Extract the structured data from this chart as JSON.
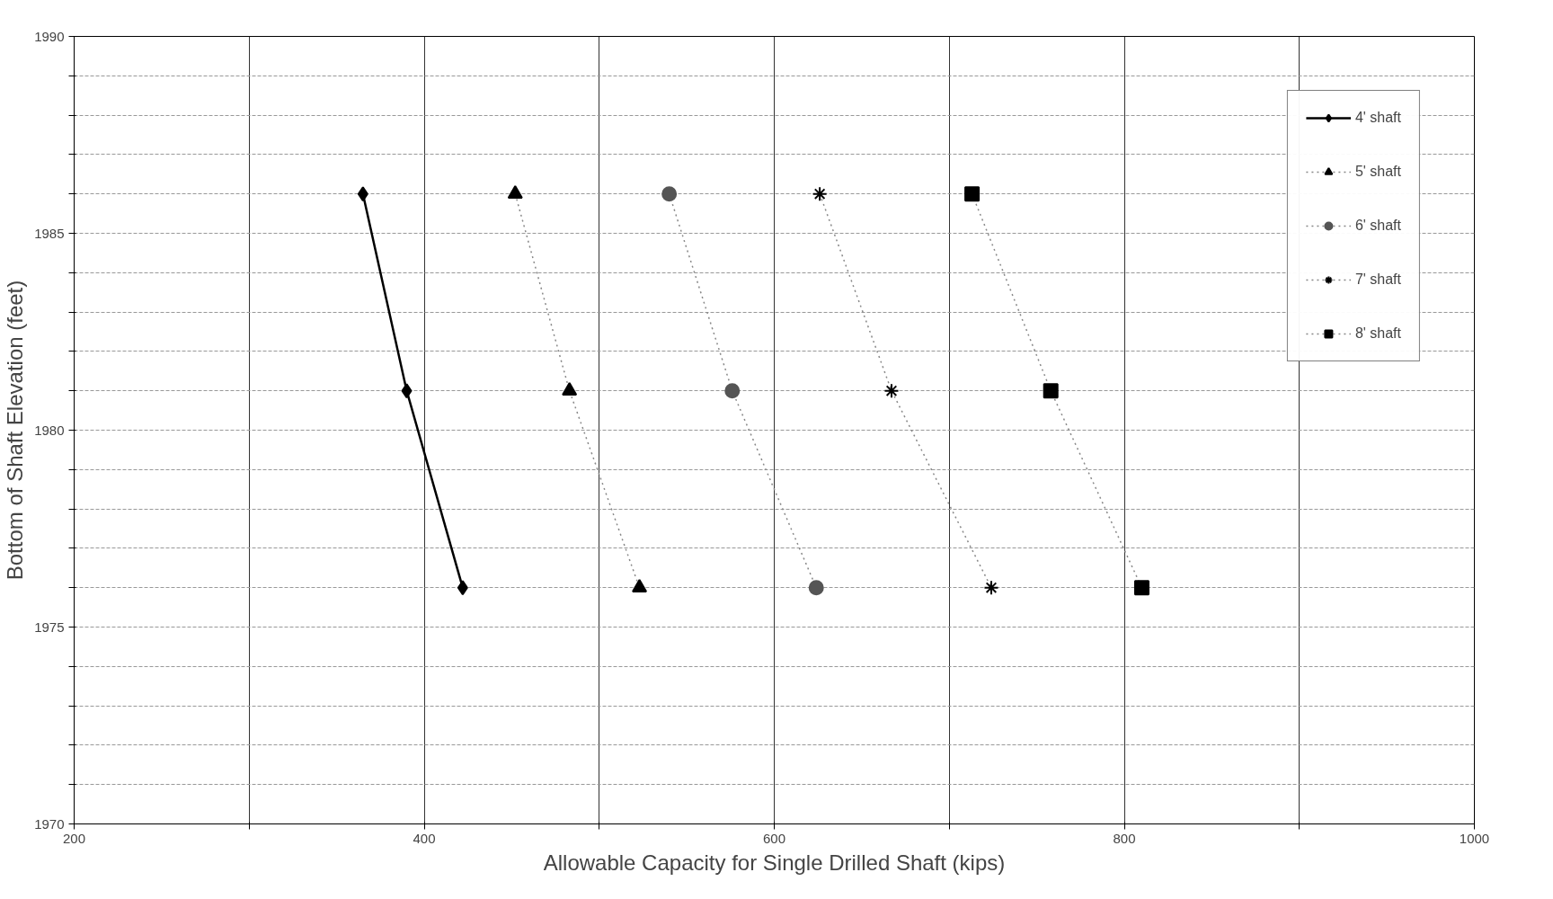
{
  "chart_data": {
    "type": "line",
    "xlabel": "Allowable Capacity for Single Drilled Shaft (kips)",
    "ylabel": "Bottom of Shaft Elevation (feet)",
    "xlim": [
      200,
      1000
    ],
    "ylim": [
      1970,
      1990
    ],
    "xticks": [
      200,
      {
        "value": 300,
        "label": null
      },
      400,
      {
        "value": 500,
        "label": null
      },
      600,
      {
        "value": 700,
        "label": null
      },
      800,
      {
        "value": 900,
        "label": null
      },
      1000
    ],
    "yticks": [
      1970,
      {
        "value": 1971,
        "label": null
      },
      {
        "value": 1972,
        "label": null
      },
      {
        "value": 1973,
        "label": null
      },
      {
        "value": 1974,
        "label": null
      },
      1975,
      {
        "value": 1976,
        "label": null
      },
      {
        "value": 1977,
        "label": null
      },
      {
        "value": 1978,
        "label": null
      },
      {
        "value": 1979,
        "label": null
      },
      1980,
      {
        "value": 1981,
        "label": null
      },
      {
        "value": 1982,
        "label": null
      },
      {
        "value": 1983,
        "label": null
      },
      {
        "value": 1984,
        "label": null
      },
      1985,
      {
        "value": 1986,
        "label": null
      },
      {
        "value": 1987,
        "label": null
      },
      {
        "value": 1988,
        "label": null
      },
      {
        "value": 1989,
        "label": null
      },
      1990
    ],
    "grid": true,
    "legend": "top right",
    "series": [
      {
        "name": "4' shaft",
        "color": "#000000",
        "marker": "diamond",
        "line_style": "solid",
        "x": [
          365,
          390,
          422
        ],
        "values": [
          1986,
          1981,
          1976
        ]
      },
      {
        "name": "5' shaft",
        "color": "#000000",
        "marker": "triangle",
        "line_style": "dotted",
        "x": [
          452,
          483,
          523
        ],
        "values": [
          1986,
          1981,
          1976
        ]
      },
      {
        "name": "6' shaft",
        "color": "#555555",
        "marker": "circle",
        "line_style": "dotted",
        "x": [
          540,
          576,
          624
        ],
        "values": [
          1986,
          1981,
          1976
        ]
      },
      {
        "name": "7' shaft",
        "color": "#000000",
        "marker": "cross",
        "line_style": "dotted",
        "x": [
          626,
          667,
          724
        ],
        "values": [
          1986,
          1981,
          1976
        ]
      },
      {
        "name": "8' shaft",
        "color": "#000000",
        "marker": "square",
        "line_style": "dotted",
        "x": [
          713,
          758,
          810
        ],
        "values": [
          1986,
          1981,
          1976
        ]
      }
    ]
  }
}
